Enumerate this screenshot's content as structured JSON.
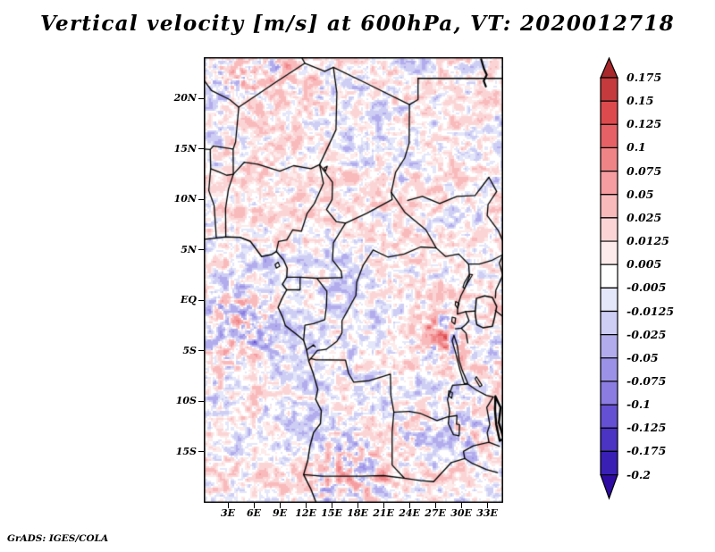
{
  "title": "Vertical velocity [m/s] at 600hPa, VT: 2020012718",
  "attribution": "GrADS: IGES/COLA",
  "chart_data": {
    "type": "heatmap",
    "title": "Vertical velocity [m/s] at 600hPa, VT: 2020012718",
    "variable": "Vertical velocity",
    "units": "m/s",
    "pressure_level": "600hPa",
    "valid_time": "2020012718",
    "region": "Central Africa, country borders and lakes overlaid in black",
    "grid": false,
    "legend_position": "right",
    "x_axis": {
      "tick_labels": [
        "3E",
        "6E",
        "9E",
        "12E",
        "15E",
        "18E",
        "21E",
        "24E",
        "27E",
        "30E",
        "33E"
      ],
      "tick_values": [
        3,
        6,
        9,
        12,
        15,
        18,
        21,
        24,
        27,
        30,
        33
      ],
      "range_deg_east": [
        0.2,
        34.85
      ]
    },
    "y_axis": {
      "tick_labels": [
        "20N",
        "15N",
        "10N",
        "5N",
        "EQ",
        "5S",
        "10S",
        "15S"
      ],
      "tick_values": [
        20,
        15,
        10,
        5,
        0,
        -5,
        -10,
        -15
      ],
      "range_deg_north": [
        -20.05,
        24.1
      ]
    },
    "colorbar": {
      "orientation": "vertical",
      "boundary_labels": [
        "0.175",
        "0.15",
        "0.125",
        "0.1",
        "0.075",
        "0.05",
        "0.025",
        "0.0125",
        "0.005",
        "-0.005",
        "-0.0125",
        "-0.025",
        "-0.05",
        "-0.075",
        "-0.1",
        "-0.125",
        "-0.175",
        "-0.2"
      ],
      "boundary_values": [
        0.175,
        0.15,
        0.125,
        0.1,
        0.075,
        0.05,
        0.025,
        0.0125,
        0.005,
        -0.005,
        -0.0125,
        -0.025,
        -0.05,
        -0.075,
        -0.1,
        -0.125,
        -0.175,
        -0.2
      ],
      "segment_colors_top_to_bottom": [
        "#a8282c",
        "#c43a3d",
        "#dd4a4e",
        "#e66165",
        "#ef8487",
        "#f59da0",
        "#f9babc",
        "#fbd5d6",
        "#fdeaea",
        "#ffffff",
        "#e4e6f9",
        "#cecdf4",
        "#b2aced",
        "#9b92e7",
        "#8a7ce1",
        "#6450d2",
        "#4b33c4",
        "#3a1fb5",
        "#2e0ba3"
      ],
      "open_ended_top": "> 0.175",
      "open_ended_bottom": "< -0.2"
    },
    "field_description": "mottled field of positive (red) and negative (blue) vertical velocity, mostly between -0.05 and 0.05 m/s, with isolated intense convective spots near the equator (3-7E, 27-29E) and in the far south and far north of the domain"
  }
}
